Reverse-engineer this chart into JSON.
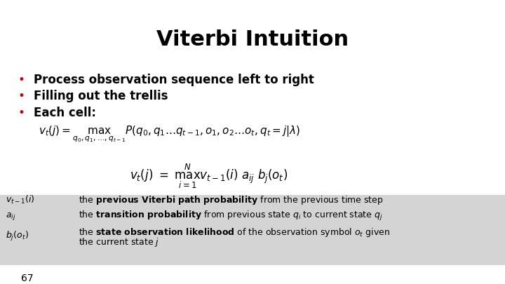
{
  "title": "Viterbi Intuition",
  "bg_color": "#ffffff",
  "gray_band_color": "#d4d4d4",
  "bullet_color": "#cc0000",
  "bullet_items": [
    "Process observation sequence left to right",
    "Filling out the trellis",
    "Each cell:"
  ],
  "page_number": "67",
  "eq1": "$v_t(j) = \\underset{q_0,q_1,\\ldots,q_{t-1}}{\\max} P(q_0,q_1\\ldots q_{t-1},o_1,o_2\\ldots o_t,q_t = j|\\lambda)$",
  "eq2": "$v_t(j) \\ = \\ \\underset{i=1}{\\overset{N}{\\max}} v_{t-1}(i) \\ a_{ij} \\ b_j(o_t)$"
}
